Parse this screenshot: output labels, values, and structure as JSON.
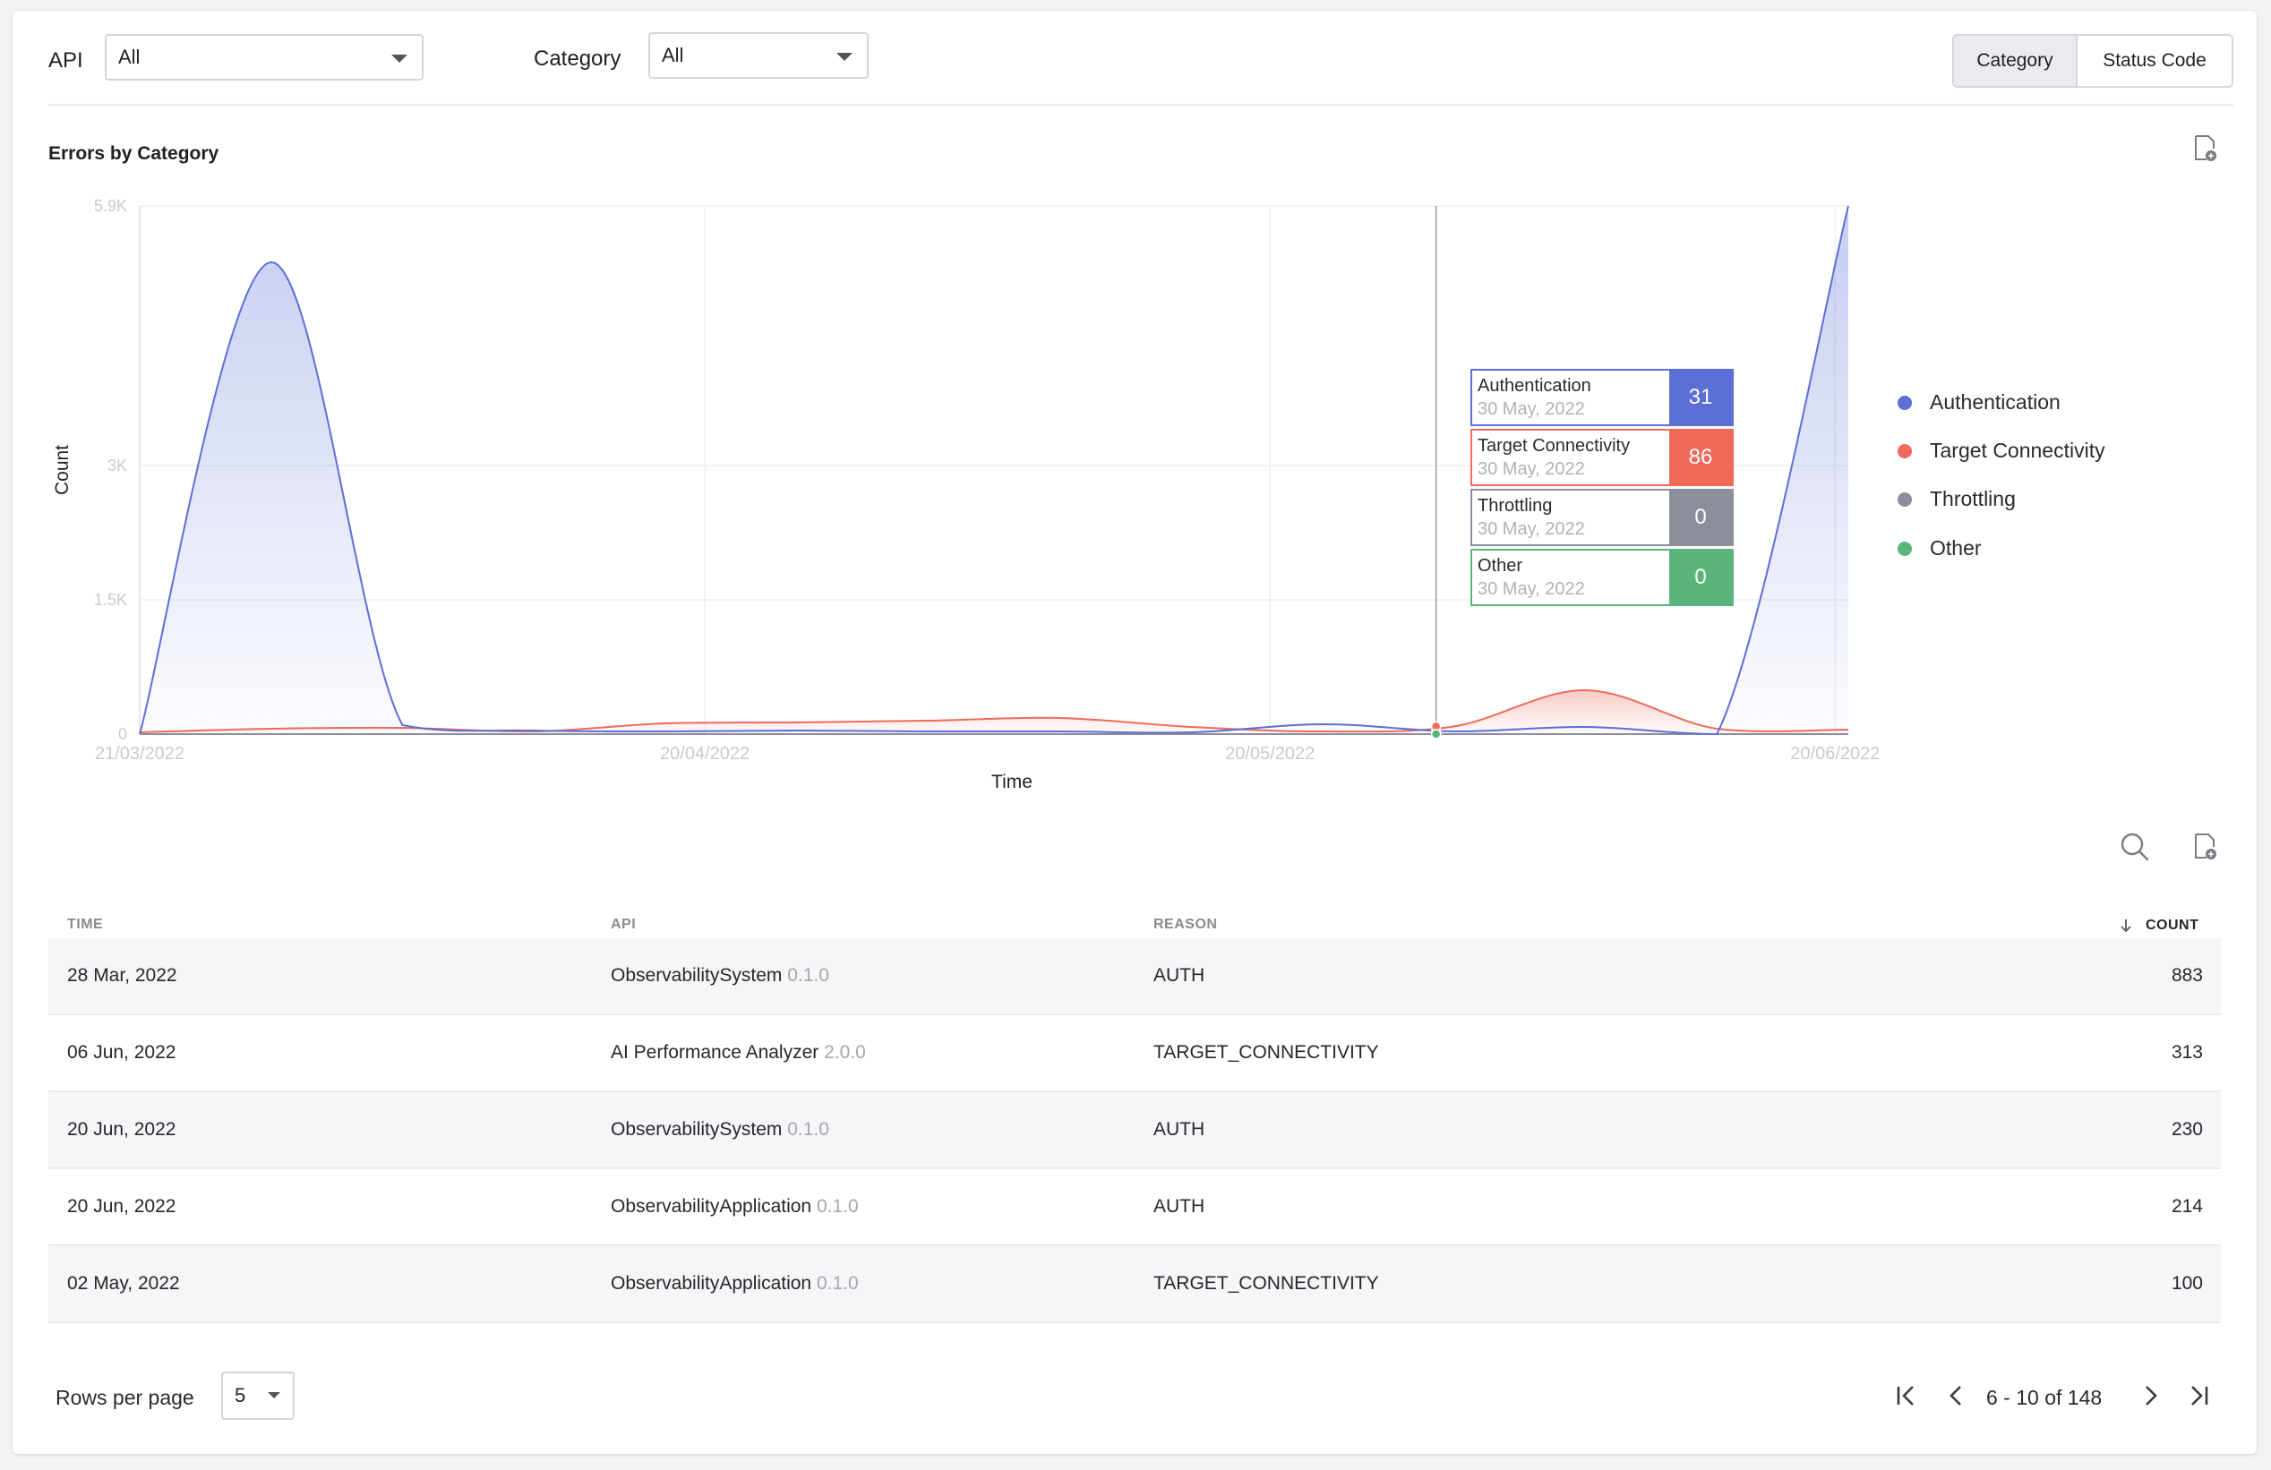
{
  "filters": {
    "api_label": "API",
    "api_value": "All",
    "category_label": "Category",
    "category_value": "All"
  },
  "view_toggle": {
    "options": [
      "Category",
      "Status Code"
    ],
    "selected": "Category"
  },
  "chart_panel": {
    "title": "Errors by Category",
    "export_icon": "export-file-icon"
  },
  "colors": {
    "authentication": "#5b6fd6",
    "target_connectivity": "#f06a5b",
    "throttling": "#8c8e9c",
    "other": "#5bb57a"
  },
  "chart_data": {
    "type": "area",
    "title": "Errors by Category",
    "xlabel": "Time",
    "ylabel": "Count",
    "ylim": [
      0,
      5900
    ],
    "yticks": [
      "0",
      "1.5K",
      "3K",
      "5.9K"
    ],
    "xticks": [
      "21/03/2022",
      "20/04/2022",
      "20/05/2022",
      "20/06/2022"
    ],
    "x": [
      "21/03/2022",
      "28/03/2022",
      "04/04/2022",
      "11/04/2022",
      "18/04/2022",
      "25/04/2022",
      "02/05/2022",
      "09/05/2022",
      "16/05/2022",
      "23/05/2022",
      "30/05/2022",
      "06/06/2022",
      "13/06/2022",
      "20/06/2022"
    ],
    "series": [
      {
        "name": "Authentication",
        "values": [
          0,
          5270,
          100,
          40,
          30,
          40,
          30,
          30,
          20,
          110,
          31,
          80,
          0,
          5900
        ]
      },
      {
        "name": "Target Connectivity",
        "values": [
          20,
          60,
          70,
          30,
          120,
          130,
          150,
          180,
          80,
          30,
          86,
          490,
          60,
          50
        ]
      },
      {
        "name": "Throttling",
        "values": [
          0,
          0,
          0,
          0,
          0,
          0,
          0,
          0,
          0,
          0,
          0,
          0,
          0,
          0
        ]
      },
      {
        "name": "Other",
        "values": [
          0,
          0,
          0,
          0,
          0,
          0,
          0,
          0,
          0,
          0,
          0,
          0,
          0,
          0
        ]
      }
    ],
    "legend": [
      "Authentication",
      "Target Connectivity",
      "Throttling",
      "Other"
    ],
    "legend_position": "right",
    "grid": true,
    "tooltip": {
      "items": [
        {
          "name": "Authentication",
          "date": "30 May, 2022",
          "value": "31"
        },
        {
          "name": "Target Connectivity",
          "date": "30 May, 2022",
          "value": "86"
        },
        {
          "name": "Throttling",
          "date": "30 May, 2022",
          "value": "0"
        },
        {
          "name": "Other",
          "date": "30 May, 2022",
          "value": "0"
        }
      ]
    }
  },
  "table": {
    "search_icon": "search-icon",
    "export_icon": "export-file-icon",
    "columns": [
      "TIME",
      "API",
      "REASON",
      "COUNT"
    ],
    "sort": {
      "column": "COUNT",
      "direction": "desc"
    },
    "rows": [
      {
        "time": "28 Mar, 2022",
        "api": "ObservabilitySystem",
        "version": "0.1.0",
        "reason": "AUTH",
        "count": "883"
      },
      {
        "time": "06 Jun, 2022",
        "api": "AI Performance Analyzer",
        "version": "2.0.0",
        "reason": "TARGET_CONNECTIVITY",
        "count": "313"
      },
      {
        "time": "20 Jun, 2022",
        "api": "ObservabilitySystem",
        "version": "0.1.0",
        "reason": "AUTH",
        "count": "230"
      },
      {
        "time": "20 Jun, 2022",
        "api": "ObservabilityApplication",
        "version": "0.1.0",
        "reason": "AUTH",
        "count": "214"
      },
      {
        "time": "02 May, 2022",
        "api": "ObservabilityApplication",
        "version": "0.1.0",
        "reason": "TARGET_CONNECTIVITY",
        "count": "100"
      }
    ]
  },
  "pagination": {
    "rows_per_page_label": "Rows per page",
    "rows_per_page_value": "5",
    "range_text": "6 - 10 of 148"
  }
}
